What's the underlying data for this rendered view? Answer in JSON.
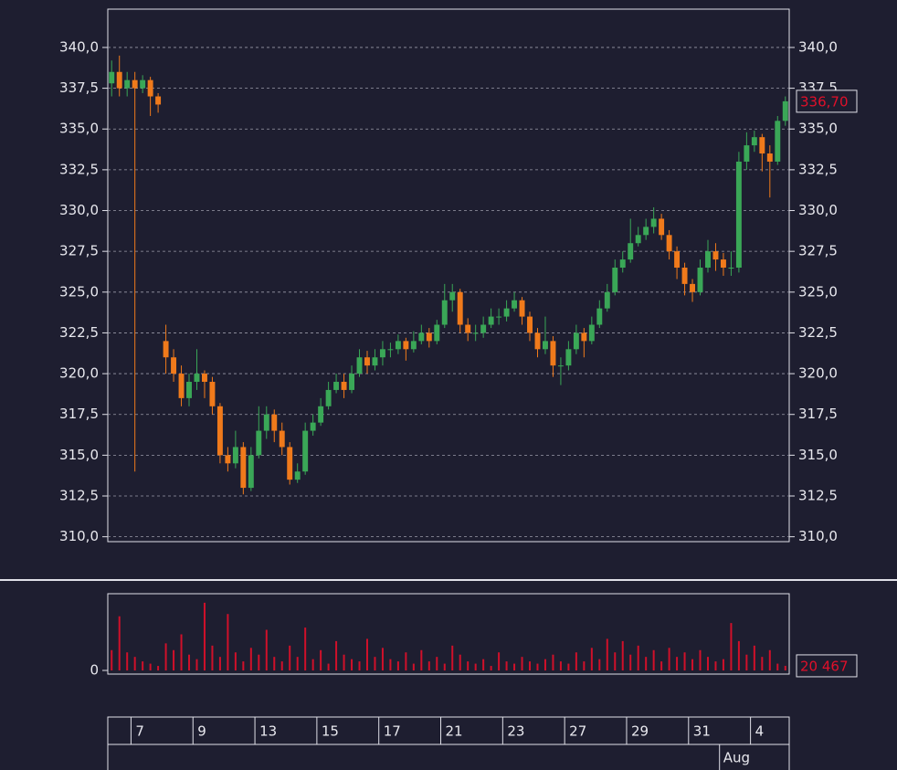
{
  "chart_data": {
    "type": "candlestick",
    "up_color": "#3aa757",
    "down_color": "#f07a1b",
    "volume_color": "#d0102a",
    "grid": true,
    "xlim": [
      0,
      88
    ],
    "xticks": [
      {
        "value": 3,
        "label": "7"
      },
      {
        "value": 11,
        "label": "9"
      },
      {
        "value": 19,
        "label": "13"
      },
      {
        "value": 27,
        "label": "15"
      },
      {
        "value": 35,
        "label": "17"
      },
      {
        "value": 43,
        "label": "21"
      },
      {
        "value": 51,
        "label": "23"
      },
      {
        "value": 59,
        "label": "27"
      },
      {
        "value": 67,
        "label": "29"
      },
      {
        "value": 75,
        "label": "31"
      },
      {
        "value": 83,
        "label": "4"
      }
    ],
    "month_ticks": [
      {
        "value": 79,
        "label": "Aug"
      }
    ],
    "ylim": [
      309.7,
      342.35
    ],
    "yticks": [
      {
        "value": 310,
        "label": "310,0"
      },
      {
        "value": 312.5,
        "label": "312,5"
      },
      {
        "value": 315,
        "label": "315,0"
      },
      {
        "value": 317.5,
        "label": "317,5"
      },
      {
        "value": 320,
        "label": "320,0"
      },
      {
        "value": 322.5,
        "label": "322,5"
      },
      {
        "value": 325,
        "label": "325,0"
      },
      {
        "value": 327.5,
        "label": "327,5"
      },
      {
        "value": 330,
        "label": "330,0"
      },
      {
        "value": 332.5,
        "label": "332,5"
      },
      {
        "value": 335,
        "label": "335,0"
      },
      {
        "value": 337.5,
        "label": "337,5"
      },
      {
        "value": 340,
        "label": "340,0"
      }
    ],
    "last_price": {
      "value": 336.7,
      "label": "336,70"
    },
    "open": [
      337.8,
      338.5,
      337.5,
      338,
      337.5,
      338,
      337,
      322,
      321,
      320,
      318.5,
      319.5,
      320,
      319.5,
      318,
      315,
      314.5,
      315.5,
      313,
      315,
      316.5,
      317.5,
      316.5,
      315.5,
      313.5,
      314,
      316.5,
      317,
      318,
      319,
      319.5,
      319,
      320,
      321,
      320.5,
      321,
      321.5,
      321.5,
      322,
      321.5,
      322,
      322.5,
      322,
      323,
      324.5,
      325,
      323,
      322.5,
      322.5,
      323,
      323.5,
      323.5,
      324,
      324.5,
      323.5,
      322.5,
      321.5,
      322,
      320.5,
      320.5,
      321.5,
      322.5,
      322,
      323,
      324,
      325,
      326.5,
      327,
      328,
      328.5,
      329,
      329.5,
      328.5,
      327.5,
      326.5,
      325.5,
      325,
      326.5,
      327.5,
      327,
      326.5,
      326.5,
      333,
      334,
      334.5,
      333.5,
      333,
      335.5
    ],
    "high": [
      339.2,
      339.5,
      338.5,
      338.5,
      338.3,
      338.2,
      337.2,
      323,
      321.5,
      320.5,
      320,
      321.5,
      320.2,
      319.8,
      318.2,
      315.5,
      316.5,
      315.8,
      315.5,
      318,
      318,
      317.8,
      317,
      315.8,
      314.5,
      317,
      317.5,
      318.5,
      319.5,
      320,
      320,
      320.5,
      321.5,
      321.4,
      321.5,
      322,
      321.9,
      322.4,
      322.2,
      322.6,
      323,
      322.8,
      323.3,
      325.5,
      325.5,
      325.2,
      323.4,
      323,
      323.5,
      324,
      324,
      324.5,
      325,
      324.7,
      323.8,
      322.8,
      323.5,
      322.3,
      321,
      322,
      323,
      322.8,
      323.5,
      324.5,
      325.5,
      327,
      327.5,
      329.5,
      329,
      329.5,
      330.2,
      329.8,
      328.8,
      327.8,
      326.8,
      325.8,
      327,
      328.2,
      328,
      327.4,
      327.5,
      333.6,
      334.8,
      334.9,
      334.7,
      334,
      335.8,
      337
    ],
    "low": [
      337,
      337,
      337,
      314,
      337.2,
      335.8,
      336,
      320,
      319.5,
      318,
      318,
      319,
      318.5,
      317.5,
      314.5,
      314,
      314.2,
      312.6,
      312.8,
      314.8,
      316,
      315.8,
      315,
      313.2,
      313.3,
      313.8,
      316.2,
      316.8,
      317.8,
      318.8,
      318.5,
      318.8,
      319.8,
      320,
      320.2,
      320.5,
      321,
      321.2,
      320.8,
      321.3,
      321.8,
      321.6,
      321.8,
      322.8,
      323.8,
      322.5,
      322,
      322,
      322.2,
      322.8,
      323,
      323.2,
      323.8,
      323,
      322,
      321,
      321.2,
      319.8,
      319.3,
      320.2,
      321.2,
      321,
      321.8,
      322.8,
      323.8,
      324.8,
      326.2,
      326.8,
      327.8,
      328.2,
      328.6,
      328.2,
      327,
      325.8,
      324.8,
      324.4,
      324.8,
      326.2,
      326.3,
      326,
      326,
      326.2,
      332.5,
      333.6,
      332.4,
      330.8,
      332.8,
      335.2
    ],
    "close": [
      338.5,
      337.5,
      338,
      337.5,
      338,
      337,
      336.5,
      321,
      320,
      318.5,
      319.5,
      320,
      319.5,
      318,
      315,
      314.5,
      315.5,
      313,
      315,
      316.5,
      317.5,
      316.5,
      315.5,
      313.5,
      314,
      316.5,
      317,
      318,
      319,
      319.5,
      319,
      320,
      321,
      320.5,
      321,
      321.5,
      321.5,
      322,
      321.5,
      322,
      322.5,
      322,
      323,
      324.5,
      325,
      323,
      322.5,
      322.5,
      323,
      323.5,
      323.5,
      324,
      324.5,
      323.5,
      322.5,
      321.5,
      322,
      320.5,
      320.5,
      321.5,
      322.5,
      322,
      323,
      324,
      325,
      326.5,
      327,
      328,
      328.5,
      329,
      329.5,
      328.5,
      327.5,
      326.5,
      325.5,
      325,
      326.5,
      327.5,
      327,
      326.5,
      326.5,
      333,
      334,
      334.5,
      333.5,
      333,
      335.5,
      336.7
    ],
    "volume_ylim": [
      0,
      340000
    ],
    "volume_yticks": [
      0
    ],
    "last_volume": {
      "value": 20467,
      "label": "20 467"
    },
    "volumes": [
      90000,
      240000,
      80000,
      60000,
      40000,
      30000,
      20000,
      120000,
      90000,
      160000,
      70000,
      50000,
      300000,
      110000,
      60000,
      250000,
      80000,
      40000,
      100000,
      70000,
      180000,
      60000,
      40000,
      110000,
      60000,
      190000,
      50000,
      90000,
      30000,
      130000,
      70000,
      50000,
      40000,
      140000,
      60000,
      100000,
      50000,
      40000,
      80000,
      30000,
      90000,
      40000,
      60000,
      30000,
      110000,
      70000,
      40000,
      30000,
      50000,
      20000,
      80000,
      40000,
      30000,
      60000,
      40000,
      30000,
      50000,
      70000,
      40000,
      30000,
      80000,
      40000,
      100000,
      50000,
      140000,
      80000,
      130000,
      70000,
      110000,
      60000,
      90000,
      40000,
      100000,
      60000,
      80000,
      50000,
      90000,
      60000,
      40000,
      50000,
      210000,
      130000,
      70000,
      110000,
      60000,
      90000,
      30000,
      20467
    ]
  }
}
